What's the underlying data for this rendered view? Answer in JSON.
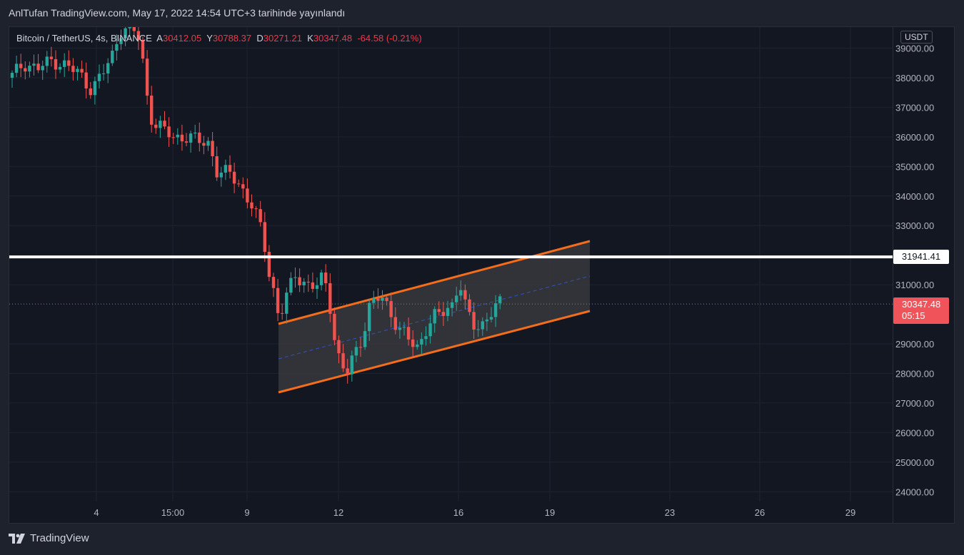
{
  "caption": "AnlTufan TradingView.com, May 17, 2022 14:54 UTC+3 tarihinde yayınlandı",
  "legend": {
    "symbol": "Bitcoin / TetherUS, 4s, BINANCE",
    "open_label": "A",
    "open": "30412.05",
    "high_label": "Y",
    "high": "30788.37",
    "low_label": "D",
    "low": "30271.21",
    "close_label": "K",
    "close": "30347.48",
    "change": "-64.58 (-0.21%)"
  },
  "currency": "USDT",
  "price_axis_labels": [
    "39000.00",
    "38000.00",
    "37000.00",
    "36000.00",
    "35000.00",
    "34000.00",
    "33000.00",
    "31000.00",
    "29000.00",
    "28000.00",
    "27000.00",
    "26000.00",
    "25000.00",
    "24000.00"
  ],
  "time_axis_labels": [
    "4",
    "15:00",
    "9",
    "12",
    "16",
    "19",
    "23",
    "26",
    "29"
  ],
  "horizontal_line": {
    "value": "31941.41",
    "color": "#ffffff"
  },
  "last_price": {
    "value": "30347.48",
    "countdown": "05:15",
    "color": "#f0535a"
  },
  "colors": {
    "up": "#26a69a",
    "down": "#ef5350",
    "channel": "#f46d1b"
  },
  "footer_brand": "TradingView"
}
